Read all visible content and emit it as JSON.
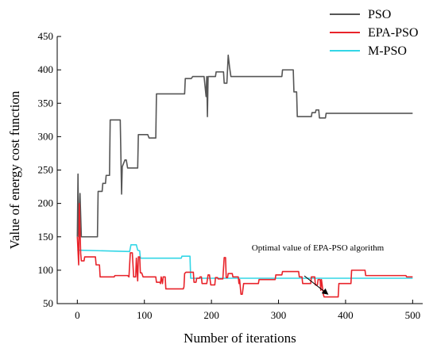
{
  "chart_data": {
    "type": "line",
    "xlabel": "Number of iterations",
    "ylabel": "Value of energy cost function",
    "xlim": [
      -30,
      515
    ],
    "ylim": [
      50,
      450
    ],
    "x_ticks": [
      0,
      100,
      200,
      300,
      400,
      500
    ],
    "y_ticks": [
      50,
      100,
      150,
      200,
      250,
      300,
      350,
      400,
      450
    ],
    "legend_position": "top-right",
    "grid": false,
    "annotation": {
      "text": "Optimal value of EPA-PSO algorithm",
      "target": [
        375,
        60
      ]
    },
    "series": [
      {
        "name": "PSO",
        "color": "#555555",
        "points": [
          [
            0,
            150
          ],
          [
            1,
            244
          ],
          [
            2,
            150
          ],
          [
            4,
            215
          ],
          [
            6,
            150
          ],
          [
            30,
            150
          ],
          [
            31,
            218
          ],
          [
            37,
            218
          ],
          [
            38,
            230
          ],
          [
            42,
            230
          ],
          [
            43,
            242
          ],
          [
            48,
            242
          ],
          [
            49,
            325
          ],
          [
            64,
            325
          ],
          [
            66,
            214
          ],
          [
            67,
            255
          ],
          [
            71,
            265
          ],
          [
            73,
            265
          ],
          [
            75,
            253
          ],
          [
            90,
            253
          ],
          [
            91,
            303
          ],
          [
            105,
            303
          ],
          [
            107,
            298
          ],
          [
            117,
            298
          ],
          [
            118,
            364
          ],
          [
            160,
            364
          ],
          [
            161,
            387
          ],
          [
            170,
            387
          ],
          [
            172,
            390
          ],
          [
            189,
            390
          ],
          [
            192,
            360
          ],
          [
            193,
            390
          ],
          [
            194,
            330
          ],
          [
            195,
            390
          ],
          [
            197,
            390
          ],
          [
            206,
            390
          ],
          [
            207,
            397
          ],
          [
            218,
            397
          ],
          [
            219,
            380
          ],
          [
            223,
            380
          ],
          [
            225,
            422
          ],
          [
            227,
            404
          ],
          [
            229,
            390
          ],
          [
            305,
            390
          ],
          [
            306,
            400
          ],
          [
            322,
            400
          ],
          [
            323,
            367
          ],
          [
            327,
            367
          ],
          [
            328,
            330
          ],
          [
            349,
            330
          ],
          [
            350,
            336
          ],
          [
            355,
            336
          ],
          [
            356,
            340
          ],
          [
            360,
            340
          ],
          [
            361,
            328
          ],
          [
            370,
            328
          ],
          [
            371,
            335
          ],
          [
            460,
            335
          ],
          [
            500,
            335
          ]
        ]
      },
      {
        "name": "EPA-PSO",
        "color": "#e8232a",
        "points": [
          [
            0,
            150
          ],
          [
            2,
            108
          ],
          [
            3,
            200
          ],
          [
            5,
            125
          ],
          [
            6,
            114
          ],
          [
            10,
            114
          ],
          [
            11,
            120
          ],
          [
            27,
            120
          ],
          [
            28,
            108
          ],
          [
            33,
            108
          ],
          [
            34,
            90
          ],
          [
            55,
            90
          ],
          [
            56,
            92
          ],
          [
            75,
            92
          ],
          [
            77,
            90
          ],
          [
            79,
            126
          ],
          [
            82,
            126
          ],
          [
            84,
            90
          ],
          [
            87,
            90
          ],
          [
            88,
            118
          ],
          [
            90,
            84
          ],
          [
            91,
            120
          ],
          [
            93,
            120
          ],
          [
            94,
            96
          ],
          [
            96,
            96
          ],
          [
            98,
            90
          ],
          [
            117,
            90
          ],
          [
            118,
            82
          ],
          [
            123,
            82
          ],
          [
            124,
            80
          ],
          [
            125,
            90
          ],
          [
            127,
            80
          ],
          [
            128,
            90
          ],
          [
            131,
            90
          ],
          [
            132,
            72
          ],
          [
            158,
            72
          ],
          [
            159,
            75
          ],
          [
            160,
            95
          ],
          [
            162,
            97
          ],
          [
            173,
            97
          ],
          [
            174,
            82
          ],
          [
            177,
            82
          ],
          [
            178,
            88
          ],
          [
            182,
            88
          ],
          [
            183,
            90
          ],
          [
            185,
            90
          ],
          [
            186,
            80
          ],
          [
            193,
            80
          ],
          [
            195,
            93
          ],
          [
            197,
            93
          ],
          [
            199,
            78
          ],
          [
            205,
            78
          ],
          [
            206,
            89
          ],
          [
            209,
            89
          ],
          [
            210,
            87
          ],
          [
            217,
            87
          ],
          [
            219,
            119
          ],
          [
            221,
            119
          ],
          [
            222,
            89
          ],
          [
            224,
            89
          ],
          [
            225,
            95
          ],
          [
            231,
            95
          ],
          [
            232,
            90
          ],
          [
            240,
            90
          ],
          [
            241,
            80
          ],
          [
            242,
            86
          ],
          [
            244,
            64
          ],
          [
            246,
            64
          ],
          [
            248,
            80
          ],
          [
            270,
            80
          ],
          [
            271,
            86
          ],
          [
            295,
            86
          ],
          [
            296,
            93
          ],
          [
            305,
            93
          ],
          [
            306,
            98
          ],
          [
            330,
            98
          ],
          [
            331,
            90
          ],
          [
            335,
            90
          ],
          [
            336,
            80
          ],
          [
            348,
            80
          ],
          [
            349,
            90
          ],
          [
            354,
            90
          ],
          [
            355,
            78
          ],
          [
            358,
            78
          ],
          [
            359,
            86
          ],
          [
            362,
            86
          ],
          [
            363,
            70
          ],
          [
            364,
            86
          ],
          [
            365,
            79
          ],
          [
            367,
            63
          ],
          [
            368,
            60
          ],
          [
            389,
            60
          ],
          [
            390,
            80
          ],
          [
            408,
            80
          ],
          [
            409,
            100
          ],
          [
            429,
            100
          ],
          [
            430,
            92
          ],
          [
            490,
            92
          ],
          [
            491,
            90
          ],
          [
            500,
            90
          ]
        ]
      },
      {
        "name": "M-PSO",
        "color": "#33d6e6",
        "points": [
          [
            0,
            130
          ],
          [
            78,
            128
          ],
          [
            80,
            138
          ],
          [
            88,
            138
          ],
          [
            90,
            130
          ],
          [
            93,
            129
          ],
          [
            94,
            118
          ],
          [
            155,
            118
          ],
          [
            156,
            121
          ],
          [
            163,
            121
          ],
          [
            164,
            121
          ],
          [
            168,
            121
          ],
          [
            169,
            88
          ],
          [
            500,
            88
          ]
        ]
      }
    ]
  }
}
